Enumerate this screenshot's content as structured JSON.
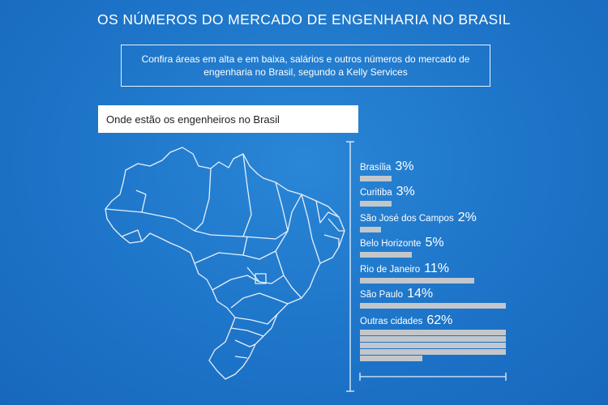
{
  "title": "OS NÚMEROS DO MERCADO DE ENGENHARIA NO BRASIL",
  "subtitle": "Confira áreas em alta e em baixa, salários e outros números do mercado de engenharia no Brasil, segundo a Kelly Services",
  "section_header": "Onde estão os engenheiros no Brasil",
  "colors": {
    "background": "#1d74c8",
    "bar": "#c3c7cc",
    "text": "#ffffff"
  },
  "chart_data": {
    "type": "bar",
    "orientation": "horizontal",
    "categories": [
      "Brasília",
      "Curitiba",
      "São José dos Campos",
      "Belo Horizonte",
      "Rio de Janeiro",
      "São Paulo",
      "Outras cidades"
    ],
    "value_labels": [
      "3%",
      "3%",
      "2%",
      "5%",
      "11%",
      "14%",
      "62%"
    ],
    "values": [
      3,
      3,
      2,
      5,
      11,
      14,
      62
    ],
    "unit": "%"
  }
}
